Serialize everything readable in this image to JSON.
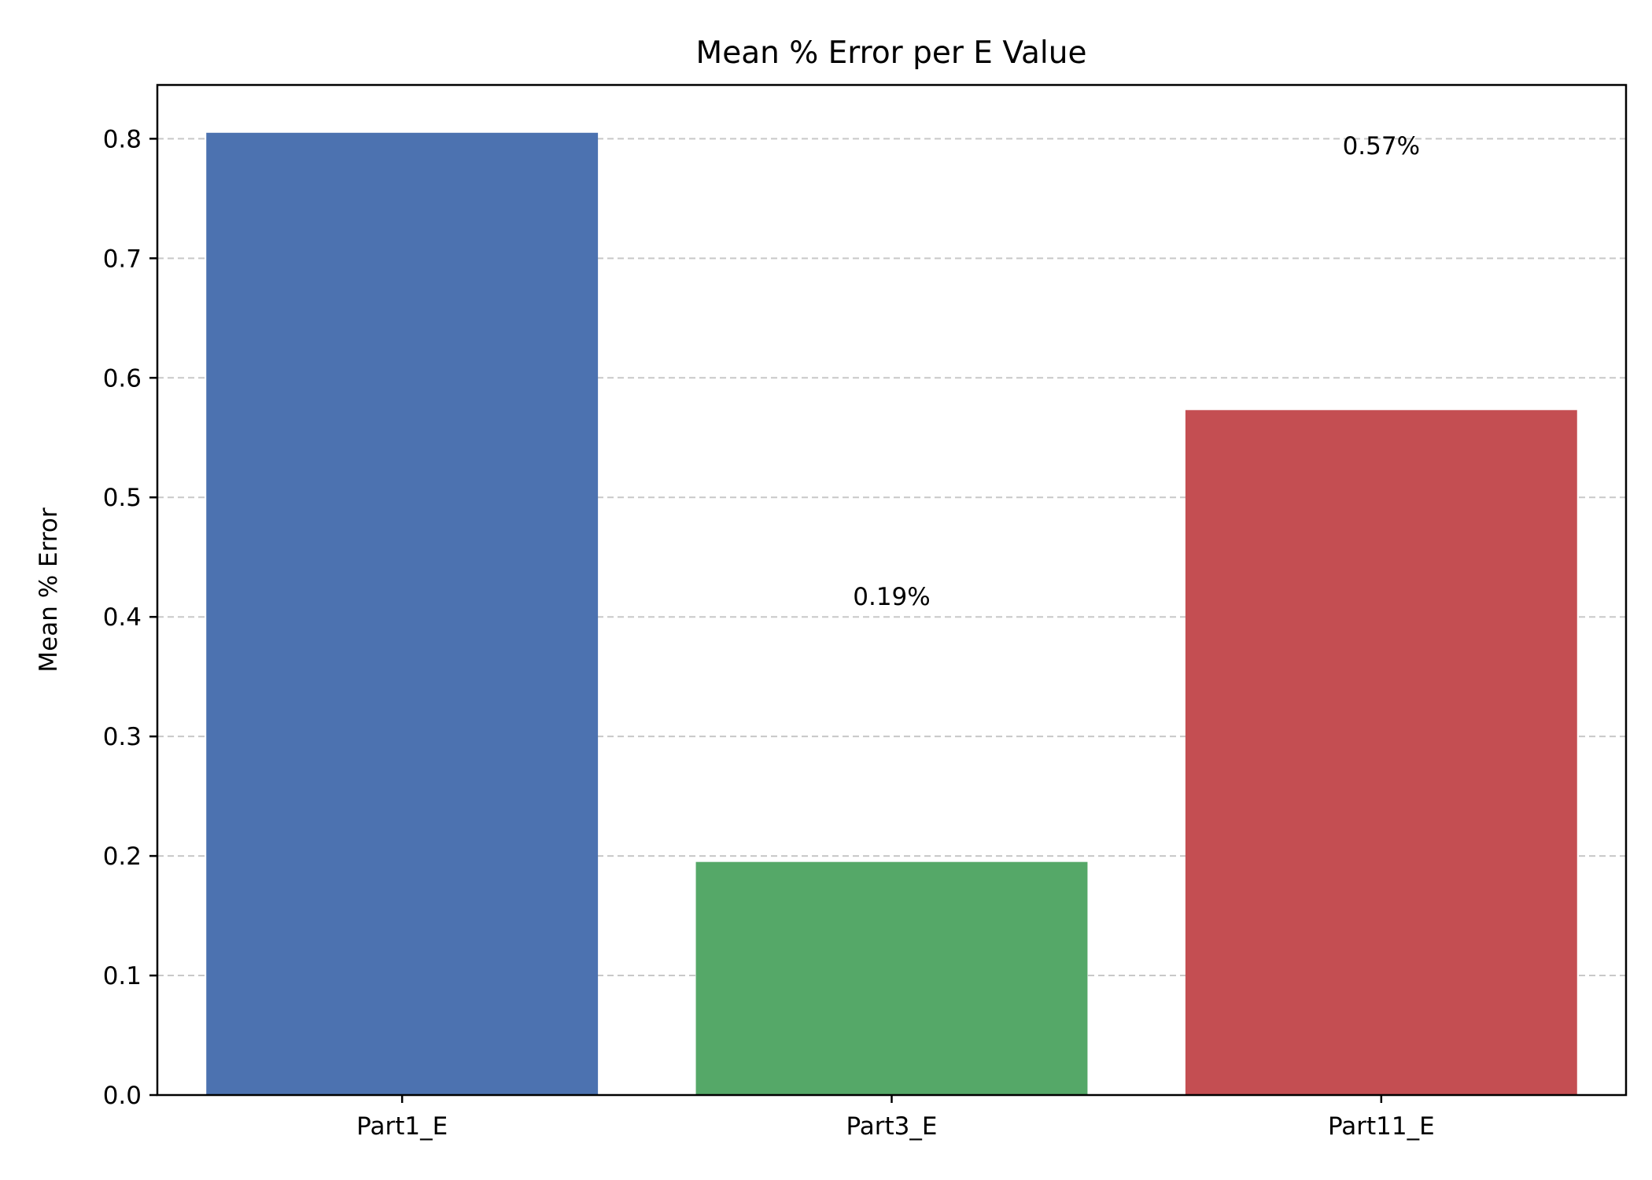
{
  "chart_data": {
    "type": "bar",
    "title": "Mean % Error per E Value",
    "xlabel": "",
    "ylabel": "Mean % Error",
    "categories": [
      "Part1_E",
      "Part3_E",
      "Part11_E"
    ],
    "values": [
      0.805,
      0.195,
      0.573
    ],
    "colors": [
      "#4c72b0",
      "#55a868",
      "#c44e52"
    ],
    "data_labels": [
      {
        "category": "Part3_E",
        "text": "0.19%",
        "y": 0.41
      },
      {
        "category": "Part11_E",
        "text": "0.57%",
        "y": 0.787
      }
    ],
    "ylim": [
      0,
      0.845
    ],
    "yticks": [
      0.0,
      0.1,
      0.2,
      0.3,
      0.4,
      0.5,
      0.6,
      0.7,
      0.8
    ],
    "ytick_labels": [
      "0.0",
      "0.1",
      "0.2",
      "0.3",
      "0.4",
      "0.5",
      "0.6",
      "0.7",
      "0.8"
    ],
    "grid": {
      "y": true,
      "x": false,
      "style": "dashed",
      "color": "#c8c8c8"
    },
    "legend": "none"
  }
}
